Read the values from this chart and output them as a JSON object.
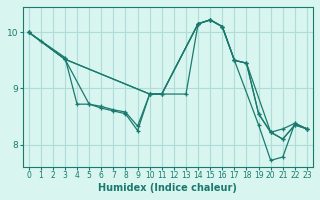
{
  "xlabel": "Humidex (Indice chaleur)",
  "bg_color": "#d8f5f0",
  "grid_color": "#b0ddd8",
  "line_color": "#1a7a6e",
  "xlim": [
    -0.5,
    23.5
  ],
  "ylim": [
    7.6,
    10.45
  ],
  "yticks": [
    8,
    9,
    10
  ],
  "xticks": [
    0,
    1,
    2,
    3,
    4,
    5,
    6,
    7,
    8,
    9,
    10,
    11,
    12,
    13,
    14,
    15,
    16,
    17,
    18,
    19,
    20,
    21,
    22,
    23
  ],
  "lines": [
    {
      "x": [
        0,
        1,
        3,
        4,
        5,
        6,
        7,
        8,
        9,
        10,
        13,
        14,
        15,
        16,
        17,
        19,
        20,
        21,
        22,
        23
      ],
      "y": [
        10.0,
        9.85,
        9.55,
        8.72,
        8.72,
        8.65,
        8.6,
        8.55,
        8.25,
        8.9,
        8.9,
        10.15,
        10.22,
        10.1,
        9.5,
        8.35,
        7.72,
        7.78,
        8.38,
        8.28
      ]
    },
    {
      "x": [
        0,
        3,
        5,
        6,
        7,
        8,
        9,
        10,
        11,
        14,
        15,
        16,
        17,
        18,
        19,
        20,
        21,
        22,
        23
      ],
      "y": [
        10.0,
        9.52,
        8.72,
        8.68,
        8.62,
        8.58,
        8.33,
        8.9,
        8.9,
        10.15,
        10.22,
        10.1,
        9.5,
        9.45,
        8.55,
        8.22,
        8.28,
        8.38,
        8.28
      ]
    },
    {
      "x": [
        0,
        3,
        10,
        11,
        14,
        15,
        16,
        17,
        18,
        20,
        21,
        22,
        23
      ],
      "y": [
        10.0,
        9.52,
        8.9,
        8.9,
        10.15,
        10.22,
        10.1,
        9.5,
        9.45,
        8.22,
        8.1,
        8.35,
        8.28
      ]
    },
    {
      "x": [
        0,
        3,
        10,
        11,
        14,
        15,
        16,
        17,
        18,
        19,
        20,
        21,
        22,
        23
      ],
      "y": [
        10.0,
        9.52,
        8.9,
        8.9,
        10.15,
        10.22,
        10.1,
        9.5,
        9.45,
        8.55,
        8.22,
        8.1,
        8.35,
        8.28
      ]
    }
  ]
}
